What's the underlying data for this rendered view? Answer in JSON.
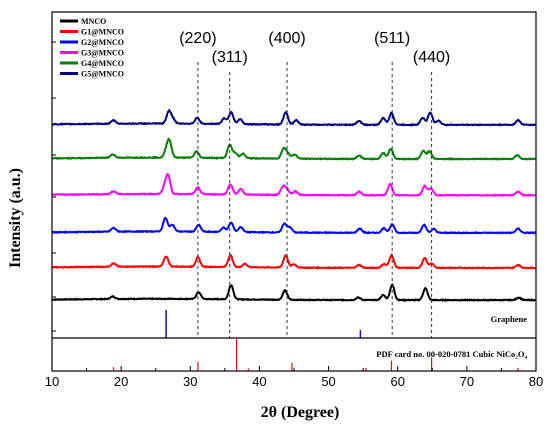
{
  "chart_data": {
    "type": "line",
    "xlabel": "2θ (Degree)",
    "ylabel": "Intensity (a.u.)",
    "xlim": [
      10,
      80
    ],
    "xticks": [
      10,
      20,
      30,
      40,
      50,
      60,
      70,
      80
    ],
    "legend_position": "top-left",
    "series": [
      {
        "name": "MNCO",
        "color": "#000000",
        "offset": 0.5,
        "baseline_amp": 0.28,
        "peaks": [
          [
            18.8,
            0.6
          ],
          [
            31.2,
            1.6
          ],
          [
            35.9,
            3.4
          ],
          [
            43.7,
            2.2
          ],
          [
            54.3,
            0.6
          ],
          [
            57.9,
            1.2
          ],
          [
            59.2,
            3.6
          ],
          [
            64.0,
            2.8
          ],
          [
            77.5,
            0.6
          ]
        ]
      },
      {
        "name": "G1@MNCO",
        "color": "#ff0000",
        "offset": 1.48,
        "baseline_amp": 0.3,
        "peaks": [
          [
            18.9,
            0.8
          ],
          [
            26.5,
            2.4
          ],
          [
            31.1,
            2.2
          ],
          [
            35.8,
            2.8
          ],
          [
            37.9,
            0.8
          ],
          [
            43.8,
            2.9
          ],
          [
            45.0,
            0.8
          ],
          [
            54.4,
            0.7
          ],
          [
            58.0,
            0.9
          ],
          [
            59.1,
            3.0
          ],
          [
            63.9,
            2.3
          ],
          [
            64.9,
            1.0
          ],
          [
            77.4,
            0.7
          ]
        ]
      },
      {
        "name": "G2@MNCO",
        "color": "#0000ff",
        "offset": 2.55,
        "baseline_amp": 0.3,
        "peaks": [
          [
            18.9,
            0.9
          ],
          [
            26.4,
            3.2
          ],
          [
            27.4,
            1.6
          ],
          [
            31.2,
            1.6
          ],
          [
            34.8,
            1.0
          ],
          [
            35.9,
            2.2
          ],
          [
            37.3,
            1.2
          ],
          [
            43.6,
            2.1
          ],
          [
            44.4,
            1.2
          ],
          [
            54.5,
            1.0
          ],
          [
            58.0,
            1.1
          ],
          [
            59.2,
            2.0
          ],
          [
            63.8,
            1.9
          ],
          [
            65.2,
            0.9
          ],
          [
            77.4,
            1.0
          ]
        ]
      },
      {
        "name": "G3@MNCO",
        "color": "#ff00ff",
        "offset": 3.7,
        "baseline_amp": 0.28,
        "peaks": [
          [
            18.9,
            0.7
          ],
          [
            26.3,
            1.6
          ],
          [
            26.8,
            4.2
          ],
          [
            31.1,
            1.6
          ],
          [
            35.8,
            2.4
          ],
          [
            37.3,
            1.3
          ],
          [
            43.4,
            1.9
          ],
          [
            44.0,
            1.3
          ],
          [
            45.2,
            0.9
          ],
          [
            54.4,
            0.8
          ],
          [
            58.9,
            2.6
          ],
          [
            63.9,
            2.2
          ],
          [
            64.8,
            1.6
          ],
          [
            77.4,
            0.9
          ]
        ]
      },
      {
        "name": "G4@MNCO",
        "color": "#008000",
        "offset": 4.8,
        "baseline_amp": 0.32,
        "peaks": [
          [
            18.8,
            0.8
          ],
          [
            26.6,
            1.8
          ],
          [
            27.0,
            3.4
          ],
          [
            30.9,
            1.5
          ],
          [
            35.7,
            3.1
          ],
          [
            36.5,
            1.2
          ],
          [
            37.6,
            1.1
          ],
          [
            43.5,
            2.3
          ],
          [
            44.1,
            1.2
          ],
          [
            45.1,
            1.0
          ],
          [
            54.4,
            0.8
          ],
          [
            57.9,
            1.4
          ],
          [
            59.0,
            2.4
          ],
          [
            63.7,
            1.9
          ],
          [
            64.6,
            1.8
          ],
          [
            77.3,
            0.9
          ]
        ]
      },
      {
        "name": "G5@MNCO",
        "color": "#000080",
        "offset": 5.85,
        "baseline_amp": 0.28,
        "peaks": [
          [
            18.9,
            0.8
          ],
          [
            26.9,
            2.9
          ],
          [
            27.5,
            1.0
          ],
          [
            31.0,
            1.4
          ],
          [
            34.9,
            1.3
          ],
          [
            35.9,
            2.8
          ],
          [
            37.2,
            1.2
          ],
          [
            43.8,
            2.9
          ],
          [
            45.3,
            1.0
          ],
          [
            54.4,
            0.9
          ],
          [
            57.9,
            1.6
          ],
          [
            59.1,
            2.8
          ],
          [
            63.6,
            1.7
          ],
          [
            64.7,
            2.9
          ],
          [
            65.9,
            1.0
          ],
          [
            77.4,
            1.1
          ]
        ]
      }
    ],
    "reference_patterns": [
      {
        "name": "Graphene",
        "color": "#0000cc",
        "sticks": [
          [
            26.5,
            1.0
          ],
          [
            54.6,
            0.28
          ]
        ]
      },
      {
        "name": "PDF card no. 00-020-0781 Cubic NiCo₂O₄",
        "color": "#ff0000",
        "sticks": [
          [
            18.9,
            0.12
          ],
          [
            31.1,
            0.28
          ],
          [
            36.7,
            1.0
          ],
          [
            38.4,
            0.08
          ],
          [
            44.7,
            0.25
          ],
          [
            55.4,
            0.1
          ],
          [
            59.1,
            0.32
          ],
          [
            64.9,
            0.42
          ],
          [
            77.4,
            0.1
          ]
        ]
      }
    ],
    "annotations": [
      {
        "text": "(220)",
        "x": 31.1
      },
      {
        "text": "(311)",
        "x": 35.7
      },
      {
        "text": "(400)",
        "x": 44.0
      },
      {
        "text": "(511)",
        "x": 59.2
      },
      {
        "text": "(440)",
        "x": 64.9
      }
    ]
  }
}
